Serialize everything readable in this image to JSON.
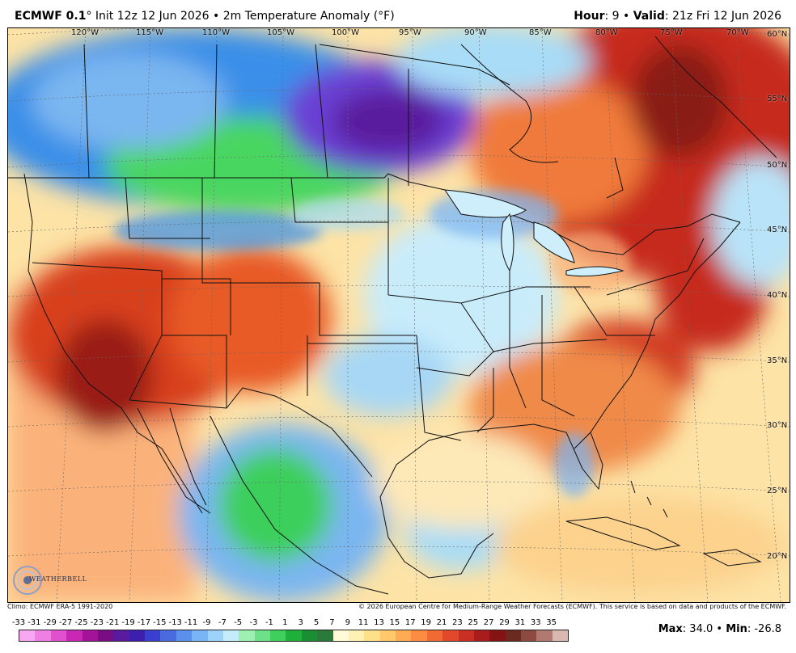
{
  "header": {
    "model": "ECMWF 0.1",
    "degree_mark": "°",
    "init_text": " Init 12z 12 Jun 2026 • 2m Temperature Anomaly (°F)",
    "hour_label": "Hour",
    "hour_value": ": 9 • ",
    "valid_label": "Valid",
    "valid_value": ": 21z Fri 12 Jun 2026"
  },
  "map": {
    "lon_labels": [
      "120°W",
      "115°W",
      "110°W",
      "105°W",
      "100°W",
      "95°W",
      "90°W",
      "85°W",
      "80°W",
      "75°W",
      "70°W"
    ],
    "lat_labels": [
      "60°N",
      "55°N",
      "50°N",
      "45°N",
      "40°N",
      "35°N",
      "30°N",
      "25°N",
      "20°N"
    ],
    "logo_text": "WEATHERBELL"
  },
  "footer": {
    "climo": "Climo: ECMWF ERA-5 1991-2020",
    "copyright": "© 2026 European Centre for Medium-Range Weather Forecasts (ECMWF). This service is based on data and products of the ECMWF."
  },
  "colorbar": {
    "labels": [
      "-33",
      "-31",
      "-29",
      "-27",
      "-25",
      "-23",
      "-21",
      "-19",
      "-17",
      "-15",
      "-13",
      "-11",
      "-9",
      "-7",
      "-5",
      "-3",
      "-1",
      "1",
      "3",
      "5",
      "7",
      "9",
      "11",
      "13",
      "15",
      "17",
      "19",
      "21",
      "23",
      "25",
      "27",
      "29",
      "31",
      "33",
      "35"
    ],
    "colors": [
      "#f7a8f0",
      "#ef7fe3",
      "#e050cf",
      "#c828b5",
      "#a4129a",
      "#7a0c84",
      "#5a1a9e",
      "#3d1fb0",
      "#3a3fd0",
      "#4a6ae0",
      "#5d90ec",
      "#79b4f4",
      "#9dd3f8",
      "#c5ecfb",
      "#9df0b0",
      "#6fe08a",
      "#3ecf5c",
      "#1fb03c",
      "#1a8e32",
      "#2a7a3a",
      "#fffbd9",
      "#fff1b3",
      "#ffe08a",
      "#ffc86a",
      "#ffab55",
      "#fb8c42",
      "#f26a33",
      "#e2492a",
      "#c92f23",
      "#a81c1c",
      "#861313",
      "#6a2a20",
      "#8c4a40",
      "#b07a70",
      "#d8b8b0"
    ]
  },
  "stats": {
    "max_label": "Max",
    "max_value": ": 34.0 • ",
    "min_label": "Min",
    "min_value": ": -26.8"
  }
}
